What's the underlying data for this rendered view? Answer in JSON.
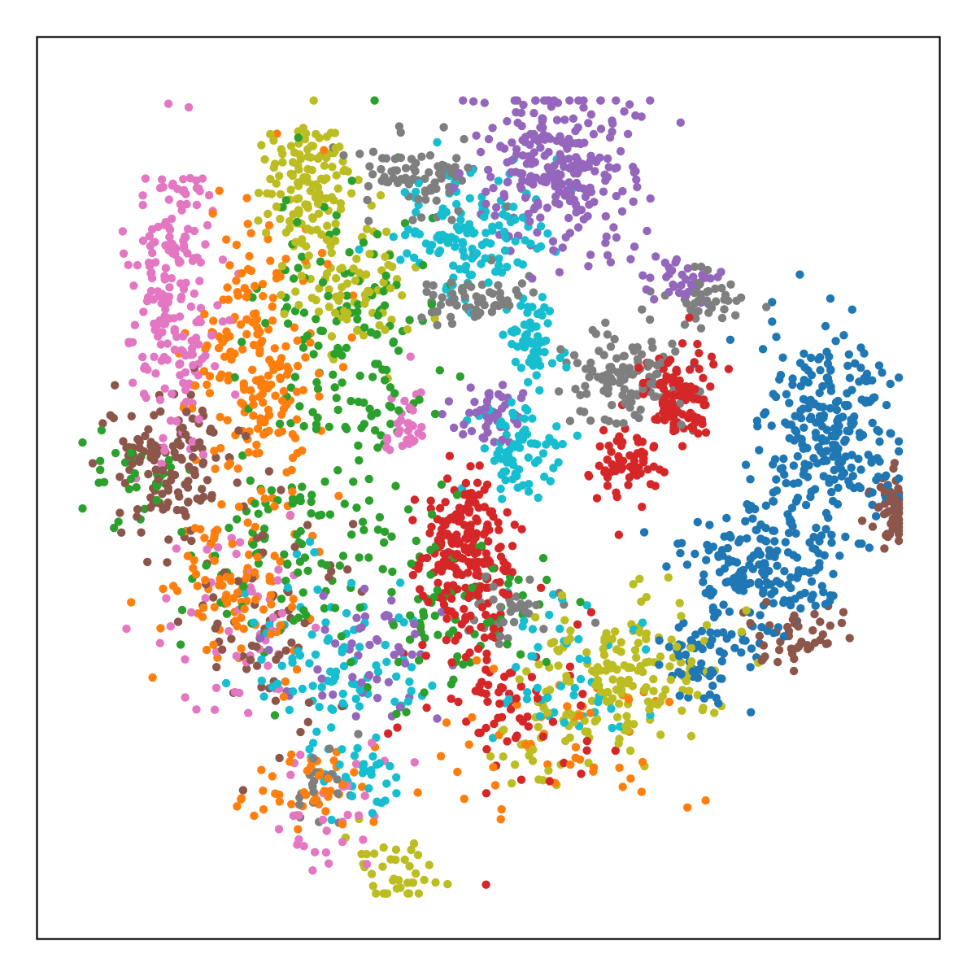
{
  "chart_data": {
    "type": "scatter",
    "title": "",
    "xlabel": "",
    "ylabel": "",
    "xlim": [
      0,
      100
    ],
    "ylim": [
      0,
      100
    ],
    "grid": false,
    "legend": "none",
    "ticks": "hidden",
    "series": [
      {
        "color": "#1f77b4",
        "clusters": [
          {
            "cx": 88,
            "cy": 55,
            "sx": 3.8,
            "sy": 6.0,
            "n": 260
          },
          {
            "cx": 80,
            "cy": 41,
            "sx": 4.0,
            "sy": 3.5,
            "n": 180
          },
          {
            "cx": 74,
            "cy": 31,
            "sx": 3.0,
            "sy": 2.5,
            "n": 60
          }
        ]
      },
      {
        "color": "#ff7f0e",
        "clusters": [
          {
            "cx": 24,
            "cy": 64,
            "sx": 3.5,
            "sy": 8.0,
            "n": 200
          },
          {
            "cx": 22,
            "cy": 38,
            "sx": 4.0,
            "sy": 4.5,
            "n": 90
          },
          {
            "cx": 30,
            "cy": 17,
            "sx": 3.0,
            "sy": 2.5,
            "n": 45
          },
          {
            "cx": 60,
            "cy": 22,
            "sx": 8.0,
            "sy": 5.0,
            "n": 50
          }
        ]
      },
      {
        "color": "#2ca02c",
        "clusters": [
          {
            "cx": 36,
            "cy": 68,
            "sx": 5.0,
            "sy": 9.0,
            "n": 150
          },
          {
            "cx": 28,
            "cy": 43,
            "sx": 6.0,
            "sy": 7.0,
            "n": 110
          },
          {
            "cx": 46,
            "cy": 37,
            "sx": 5.0,
            "sy": 5.0,
            "n": 70
          },
          {
            "cx": 10,
            "cy": 51,
            "sx": 3.0,
            "sy": 2.5,
            "n": 30
          }
        ]
      },
      {
        "color": "#d62728",
        "clusters": [
          {
            "cx": 47.5,
            "cy": 43,
            "sx": 2.5,
            "sy": 4.5,
            "n": 220
          },
          {
            "cx": 71,
            "cy": 60,
            "sx": 2.0,
            "sy": 3.0,
            "n": 110
          },
          {
            "cx": 65,
            "cy": 53,
            "sx": 2.0,
            "sy": 2.0,
            "n": 60
          },
          {
            "cx": 52,
            "cy": 26,
            "sx": 6.0,
            "sy": 5.0,
            "n": 80
          }
        ]
      },
      {
        "color": "#9467bd",
        "clusters": [
          {
            "cx": 58,
            "cy": 86,
            "sx": 4.0,
            "sy": 4.5,
            "n": 260
          },
          {
            "cx": 50,
            "cy": 58,
            "sx": 2.0,
            "sy": 1.5,
            "n": 50
          },
          {
            "cx": 72,
            "cy": 73,
            "sx": 2.0,
            "sy": 1.2,
            "n": 35
          },
          {
            "cx": 36,
            "cy": 32,
            "sx": 5.0,
            "sy": 4.0,
            "n": 50
          }
        ]
      },
      {
        "color": "#8c564b",
        "clusters": [
          {
            "cx": 15,
            "cy": 52,
            "sx": 3.5,
            "sy": 4.0,
            "n": 130
          },
          {
            "cx": 95,
            "cy": 47.5,
            "sx": 1.5,
            "sy": 1.8,
            "n": 60
          },
          {
            "cx": 84,
            "cy": 34,
            "sx": 3.0,
            "sy": 2.0,
            "n": 45
          },
          {
            "cx": 26,
            "cy": 35,
            "sx": 5.0,
            "sy": 6.0,
            "n": 70
          }
        ]
      },
      {
        "color": "#e377c2",
        "clusters": [
          {
            "cx": 15,
            "cy": 71,
            "sx": 2.5,
            "sy": 8.0,
            "n": 200
          },
          {
            "cx": 41,
            "cy": 57,
            "sx": 1.2,
            "sy": 2.0,
            "n": 30
          },
          {
            "cx": 22,
            "cy": 34,
            "sx": 5.0,
            "sy": 6.0,
            "n": 50
          },
          {
            "cx": 33,
            "cy": 14,
            "sx": 3.0,
            "sy": 3.0,
            "n": 30
          }
        ]
      },
      {
        "color": "#7f7f7f",
        "clusters": [
          {
            "cx": 42,
            "cy": 85,
            "sx": 3.0,
            "sy": 2.0,
            "n": 80
          },
          {
            "cx": 48,
            "cy": 71,
            "sx": 3.0,
            "sy": 1.5,
            "n": 60
          },
          {
            "cx": 65,
            "cy": 62,
            "sx": 3.0,
            "sy": 3.0,
            "n": 110
          },
          {
            "cx": 74,
            "cy": 71,
            "sx": 3.0,
            "sy": 1.5,
            "n": 45
          },
          {
            "cx": 52,
            "cy": 36,
            "sx": 2.5,
            "sy": 1.5,
            "n": 35
          },
          {
            "cx": 31,
            "cy": 17,
            "sx": 2.0,
            "sy": 2.0,
            "n": 25
          }
        ]
      },
      {
        "color": "#bcbd22",
        "clusters": [
          {
            "cx": 30,
            "cy": 83,
            "sx": 2.5,
            "sy": 4.0,
            "n": 130
          },
          {
            "cx": 35,
            "cy": 72,
            "sx": 3.5,
            "sy": 3.5,
            "n": 80
          },
          {
            "cx": 67,
            "cy": 30,
            "sx": 5.0,
            "sy": 4.0,
            "n": 140
          },
          {
            "cx": 40,
            "cy": 8,
            "sx": 2.5,
            "sy": 2.5,
            "n": 40
          },
          {
            "cx": 56,
            "cy": 24,
            "sx": 4.0,
            "sy": 4.0,
            "n": 50
          }
        ]
      },
      {
        "color": "#17becf",
        "clusters": [
          {
            "cx": 48,
            "cy": 78,
            "sx": 4.0,
            "sy": 3.5,
            "n": 140
          },
          {
            "cx": 55,
            "cy": 66,
            "sx": 1.5,
            "sy": 2.5,
            "n": 60
          },
          {
            "cx": 54,
            "cy": 54,
            "sx": 2.5,
            "sy": 2.5,
            "n": 70
          },
          {
            "cx": 33,
            "cy": 32,
            "sx": 5.0,
            "sy": 5.0,
            "n": 90
          },
          {
            "cx": 58,
            "cy": 30,
            "sx": 4.0,
            "sy": 5.0,
            "n": 50
          },
          {
            "cx": 36,
            "cy": 18,
            "sx": 3.0,
            "sy": 3.0,
            "n": 35
          }
        ]
      }
    ]
  }
}
